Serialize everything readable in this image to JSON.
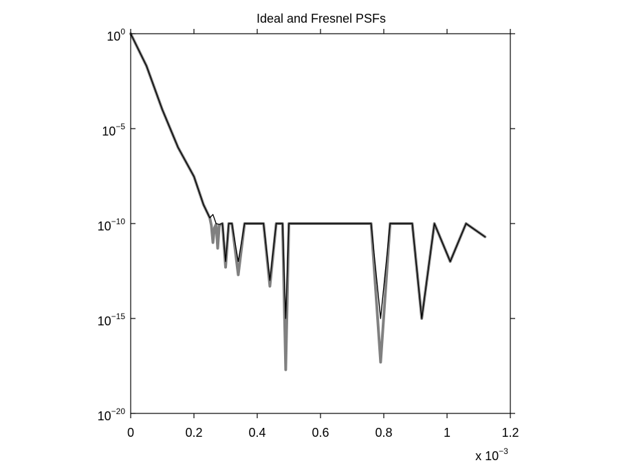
{
  "chart_data": {
    "type": "line",
    "title": "Ideal and Fresnel PSFs",
    "xlabel": "",
    "ylabel": "",
    "x_multiplier_label": {
      "base": "x 10",
      "exp": "−3"
    },
    "xlim": [
      0,
      0.0012
    ],
    "ylim": [
      1e-20,
      1
    ],
    "yscale": "log",
    "grid": false,
    "x_ticks": [
      {
        "value": 0,
        "label": "0"
      },
      {
        "value": 0.0002,
        "label": "0.2"
      },
      {
        "value": 0.0004,
        "label": "0.4"
      },
      {
        "value": 0.0006,
        "label": "0.6"
      },
      {
        "value": 0.0008,
        "label": "0.8"
      },
      {
        "value": 0.001,
        "label": "1"
      },
      {
        "value": 0.0012,
        "label": "1.2"
      }
    ],
    "y_ticks": [
      {
        "value": 1,
        "base": "10",
        "exp": "0"
      },
      {
        "value": 1e-05,
        "base": "10",
        "exp": "−5"
      },
      {
        "value": 1e-10,
        "base": "10",
        "exp": "−10"
      },
      {
        "value": 1e-15,
        "base": "10",
        "exp": "−15"
      },
      {
        "value": 1e-20,
        "base": "10",
        "exp": "−20"
      }
    ],
    "series": [
      {
        "color": "#808080",
        "x": [
          0,
          5e-05,
          0.0001,
          0.00015,
          0.0002,
          0.00023,
          0.00025,
          0.000255,
          0.00026,
          0.000265,
          0.00027,
          0.000275,
          0.00028,
          0.00029,
          0.0003,
          0.00031,
          0.00032,
          0.00034,
          0.00036,
          0.00038,
          0.0004,
          0.00042,
          0.00044,
          0.00046,
          0.00048,
          0.00049,
          0.0005,
          0.00052,
          0.00055,
          0.00058,
          0.00061,
          0.00064,
          0.00067,
          0.0007,
          0.00073,
          0.00076,
          0.00079,
          0.00082,
          0.00086,
          0.00089,
          0.00092,
          0.00096,
          0.00101,
          0.00106,
          0.00112
        ],
        "y": [
          1,
          0.02,
          0.0001,
          1e-06,
          3e-08,
          1e-09,
          2e-10,
          8e-11,
          1e-11,
          6e-11,
          9e-11,
          5e-12,
          8e-11,
          1e-10,
          5e-13,
          1e-10,
          1e-10,
          2e-13,
          1e-10,
          1e-10,
          1e-10,
          1e-10,
          5e-14,
          1e-10,
          1e-10,
          2e-18,
          1e-10,
          1e-10,
          1e-10,
          1e-10,
          1e-10,
          1e-10,
          1e-10,
          1e-10,
          1e-10,
          1e-10,
          5e-18,
          1e-10,
          1e-10,
          1e-10,
          1e-15,
          1e-10,
          1e-12,
          1e-10,
          2e-11
        ]
      },
      {
        "color": "#000000",
        "x": [
          0,
          5e-05,
          0.0001,
          0.00015,
          0.0002,
          0.00023,
          0.00025,
          0.00026,
          0.00027,
          0.00028,
          0.00029,
          0.0003,
          0.00031,
          0.00032,
          0.00034,
          0.00036,
          0.00038,
          0.0004,
          0.00042,
          0.00044,
          0.00046,
          0.00048,
          0.00049,
          0.0005,
          0.00052,
          0.00055,
          0.00058,
          0.00061,
          0.00064,
          0.00067,
          0.0007,
          0.00073,
          0.00076,
          0.00079,
          0.00082,
          0.00086,
          0.00089,
          0.00092,
          0.00096,
          0.00101,
          0.00106,
          0.00112
        ],
        "y": [
          1,
          0.02,
          0.0001,
          1e-06,
          3e-08,
          1e-09,
          2e-10,
          3e-10,
          1e-10,
          9e-11,
          1e-10,
          1e-12,
          1e-10,
          1e-10,
          1e-12,
          1e-10,
          1e-10,
          1e-10,
          1e-10,
          1e-13,
          1e-10,
          1e-10,
          1e-15,
          1e-10,
          1e-10,
          1e-10,
          1e-10,
          1e-10,
          1e-10,
          1e-10,
          1e-10,
          1e-10,
          1e-10,
          1e-15,
          1e-10,
          1e-10,
          1e-10,
          1e-15,
          1e-10,
          1e-12,
          1e-10,
          2e-11
        ]
      }
    ]
  }
}
